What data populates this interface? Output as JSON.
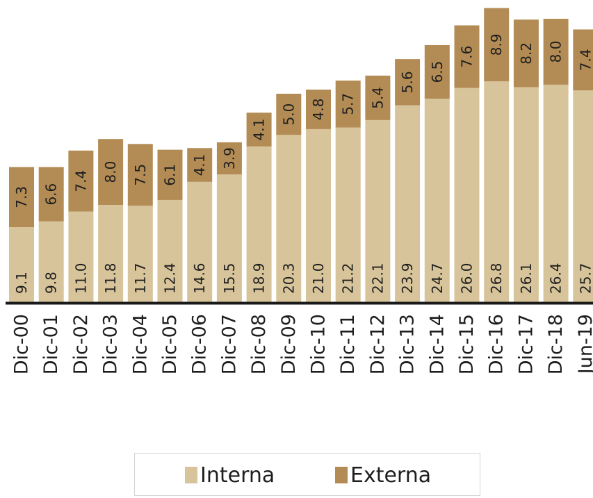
{
  "chart_data": {
    "type": "bar",
    "stacked": true,
    "categories": [
      "Dic-00",
      "Dic-01",
      "Dic-02",
      "Dic-03",
      "Dic-04",
      "Dic-05",
      "Dic-06",
      "Dic-07",
      "Dic-08",
      "Dic-09",
      "Dic-10",
      "Dic-11",
      "Dic-12",
      "Dic-13",
      "Dic-14",
      "Dic-15",
      "Dic-16",
      "Dic-17",
      "Dic-18",
      "Jun-19"
    ],
    "series": [
      {
        "name": "Interna",
        "color": "#d8c49a",
        "values": [
          9.1,
          9.8,
          11.0,
          11.8,
          11.7,
          12.4,
          14.6,
          15.5,
          18.9,
          20.3,
          21.0,
          21.2,
          22.1,
          23.9,
          24.7,
          26.0,
          26.8,
          26.1,
          26.4,
          25.7
        ],
        "labels": [
          "9.1",
          "9.8",
          "11.0",
          "11.8",
          "11.7",
          "12.4",
          "14.6",
          "15.5",
          "18.9",
          "20.3",
          "21.0",
          "21.2",
          "22.1",
          "23.9",
          "24.7",
          "26.0",
          "26.8",
          "26.1",
          "26.4",
          "25.7"
        ]
      },
      {
        "name": "Externa",
        "color": "#b38c55",
        "values": [
          7.3,
          6.6,
          7.4,
          8.0,
          7.5,
          6.1,
          4.1,
          3.9,
          4.1,
          5.0,
          4.8,
          5.7,
          5.4,
          5.6,
          6.5,
          7.6,
          8.9,
          8.2,
          8.0,
          7.4
        ],
        "labels": [
          "7.3",
          "6.6",
          "7.4",
          "8.0",
          "7.5",
          "6.1",
          "4.1",
          "3.9",
          "4.1",
          "5.0",
          "4.8",
          "5.7",
          "5.4",
          "5.6",
          "6.5",
          "7.6",
          "8.9",
          "8.2",
          "8.0",
          "7.4"
        ]
      }
    ],
    "legend_position": "bottom",
    "grid": false
  }
}
